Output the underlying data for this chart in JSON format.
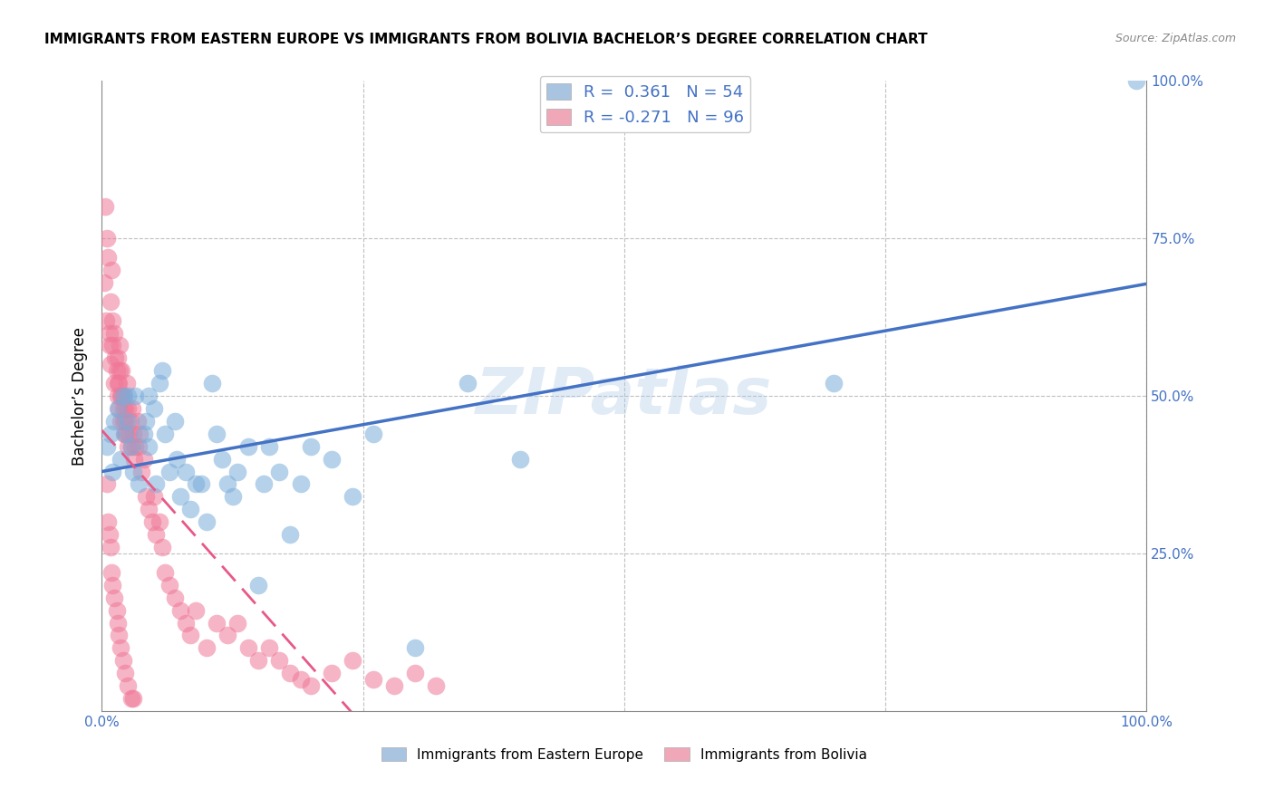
{
  "title": "IMMIGRANTS FROM EASTERN EUROPE VS IMMIGRANTS FROM BOLIVIA BACHELOR’S DEGREE CORRELATION CHART",
  "source": "Source: ZipAtlas.com",
  "ylabel": "Bachelor’s Degree",
  "legend_label1": "R =  0.361   N = 54",
  "legend_label2": "R = -0.271   N = 96",
  "legend_color1": "#a8c4e0",
  "legend_color2": "#f0a8b8",
  "color_blue": "#7aadda",
  "color_pink": "#f07898",
  "line_blue": "#4472c4",
  "line_pink": "#e85888",
  "watermark": "ZIPatlas",
  "blue_scatter_x": [
    0.005,
    0.008,
    0.01,
    0.012,
    0.015,
    0.018,
    0.02,
    0.022,
    0.025,
    0.025,
    0.028,
    0.03,
    0.032,
    0.035,
    0.04,
    0.042,
    0.045,
    0.045,
    0.05,
    0.052,
    0.055,
    0.058,
    0.06,
    0.065,
    0.07,
    0.072,
    0.075,
    0.08,
    0.085,
    0.09,
    0.095,
    0.1,
    0.105,
    0.11,
    0.115,
    0.12,
    0.125,
    0.13,
    0.14,
    0.15,
    0.155,
    0.16,
    0.17,
    0.18,
    0.19,
    0.2,
    0.22,
    0.24,
    0.26,
    0.3,
    0.35,
    0.4,
    0.7,
    0.99
  ],
  "blue_scatter_y": [
    0.42,
    0.44,
    0.38,
    0.46,
    0.48,
    0.4,
    0.5,
    0.44,
    0.46,
    0.5,
    0.42,
    0.38,
    0.5,
    0.36,
    0.44,
    0.46,
    0.42,
    0.5,
    0.48,
    0.36,
    0.52,
    0.54,
    0.44,
    0.38,
    0.46,
    0.4,
    0.34,
    0.38,
    0.32,
    0.36,
    0.36,
    0.3,
    0.52,
    0.44,
    0.4,
    0.36,
    0.34,
    0.38,
    0.42,
    0.2,
    0.36,
    0.42,
    0.38,
    0.28,
    0.36,
    0.42,
    0.4,
    0.34,
    0.44,
    0.1,
    0.52,
    0.4,
    0.52,
    1.0
  ],
  "pink_scatter_x": [
    0.002,
    0.003,
    0.004,
    0.005,
    0.006,
    0.007,
    0.007,
    0.008,
    0.008,
    0.009,
    0.01,
    0.01,
    0.012,
    0.012,
    0.013,
    0.014,
    0.015,
    0.015,
    0.015,
    0.016,
    0.016,
    0.017,
    0.017,
    0.018,
    0.018,
    0.019,
    0.019,
    0.02,
    0.02,
    0.021,
    0.021,
    0.022,
    0.022,
    0.023,
    0.024,
    0.025,
    0.025,
    0.026,
    0.027,
    0.028,
    0.029,
    0.03,
    0.031,
    0.032,
    0.034,
    0.035,
    0.036,
    0.038,
    0.04,
    0.042,
    0.045,
    0.048,
    0.05,
    0.052,
    0.055,
    0.058,
    0.06,
    0.065,
    0.07,
    0.075,
    0.08,
    0.085,
    0.09,
    0.1,
    0.11,
    0.12,
    0.13,
    0.14,
    0.15,
    0.16,
    0.17,
    0.18,
    0.19,
    0.2,
    0.22,
    0.24,
    0.26,
    0.28,
    0.3,
    0.32,
    0.005,
    0.006,
    0.007,
    0.008,
    0.009,
    0.01,
    0.012,
    0.014,
    0.015,
    0.016,
    0.018,
    0.02,
    0.022,
    0.025,
    0.028,
    0.03
  ],
  "pink_scatter_y": [
    0.68,
    0.8,
    0.62,
    0.75,
    0.72,
    0.6,
    0.58,
    0.65,
    0.55,
    0.7,
    0.58,
    0.62,
    0.52,
    0.6,
    0.56,
    0.54,
    0.5,
    0.56,
    0.52,
    0.48,
    0.52,
    0.58,
    0.54,
    0.5,
    0.46,
    0.54,
    0.5,
    0.48,
    0.46,
    0.5,
    0.44,
    0.48,
    0.46,
    0.44,
    0.52,
    0.48,
    0.42,
    0.44,
    0.46,
    0.42,
    0.48,
    0.44,
    0.4,
    0.42,
    0.46,
    0.42,
    0.44,
    0.38,
    0.4,
    0.34,
    0.32,
    0.3,
    0.34,
    0.28,
    0.3,
    0.26,
    0.22,
    0.2,
    0.18,
    0.16,
    0.14,
    0.12,
    0.16,
    0.1,
    0.14,
    0.12,
    0.14,
    0.1,
    0.08,
    0.1,
    0.08,
    0.06,
    0.05,
    0.04,
    0.06,
    0.08,
    0.05,
    0.04,
    0.06,
    0.04,
    0.36,
    0.3,
    0.28,
    0.26,
    0.22,
    0.2,
    0.18,
    0.16,
    0.14,
    0.12,
    0.1,
    0.08,
    0.06,
    0.04,
    0.02,
    0.02
  ]
}
